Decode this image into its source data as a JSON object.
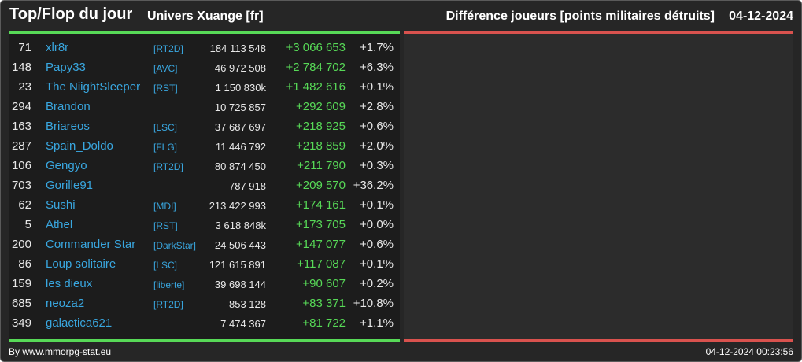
{
  "header": {
    "title": "Top/Flop du jour",
    "universe": "Univers Xuange [fr]",
    "metric": "Différence joueurs [points militaires détruits]",
    "date": "04-12-2024"
  },
  "colors": {
    "gain": "#57d957",
    "loss": "#d9524e",
    "link": "#39a7e0",
    "background": "#262626"
  },
  "top_rows": [
    {
      "rank": "71",
      "name": "xlr8r",
      "alliance": "[RT2D]",
      "points": "184 113 548",
      "diff": "+3 066 653",
      "pct": "+1.7%"
    },
    {
      "rank": "148",
      "name": "Papy33",
      "alliance": "[AVC]",
      "points": "46 972 508",
      "diff": "+2 784 702",
      "pct": "+6.3%"
    },
    {
      "rank": "23",
      "name": "The NiightSleeper",
      "alliance": "[RST]",
      "points": "1 150 830k",
      "diff": "+1 482 616",
      "pct": "+0.1%"
    },
    {
      "rank": "294",
      "name": "Brandon",
      "alliance": "",
      "points": "10 725 857",
      "diff": "+292 609",
      "pct": "+2.8%"
    },
    {
      "rank": "163",
      "name": "Briareos",
      "alliance": "[LSC]",
      "points": "37 687 697",
      "diff": "+218 925",
      "pct": "+0.6%"
    },
    {
      "rank": "287",
      "name": "Spain_Doldo",
      "alliance": "[FLG]",
      "points": "11 446 792",
      "diff": "+218 859",
      "pct": "+2.0%"
    },
    {
      "rank": "106",
      "name": "Gengyo",
      "alliance": "[RT2D]",
      "points": "80 874 450",
      "diff": "+211 790",
      "pct": "+0.3%"
    },
    {
      "rank": "703",
      "name": "Gorille91",
      "alliance": "",
      "points": "787 918",
      "diff": "+209 570",
      "pct": "+36.2%"
    },
    {
      "rank": "62",
      "name": "Sushi",
      "alliance": "[MDI]",
      "points": "213 422 993",
      "diff": "+174 161",
      "pct": "+0.1%"
    },
    {
      "rank": "5",
      "name": "Athel",
      "alliance": "[RST]",
      "points": "3 618 848k",
      "diff": "+173 705",
      "pct": "+0.0%"
    },
    {
      "rank": "200",
      "name": "Commander Star",
      "alliance": "[DarkStar]",
      "points": "24 506 443",
      "diff": "+147 077",
      "pct": "+0.6%"
    },
    {
      "rank": "86",
      "name": "Loup solitaire",
      "alliance": "[LSC]",
      "points": "121 615 891",
      "diff": "+117 087",
      "pct": "+0.1%"
    },
    {
      "rank": "159",
      "name": "les dieux",
      "alliance": "[liberte]",
      "points": "39 698 144",
      "diff": "+90 607",
      "pct": "+0.2%"
    },
    {
      "rank": "685",
      "name": "neoza2",
      "alliance": "[RT2D]",
      "points": "853 128",
      "diff": "+83 371",
      "pct": "+10.8%"
    },
    {
      "rank": "349",
      "name": "galactica621",
      "alliance": "",
      "points": "7 474 367",
      "diff": "+81 722",
      "pct": "+1.1%"
    }
  ],
  "footer": {
    "credit": "By www.mmorpg-stat.eu",
    "timestamp": "04-12-2024 00:23:56"
  }
}
